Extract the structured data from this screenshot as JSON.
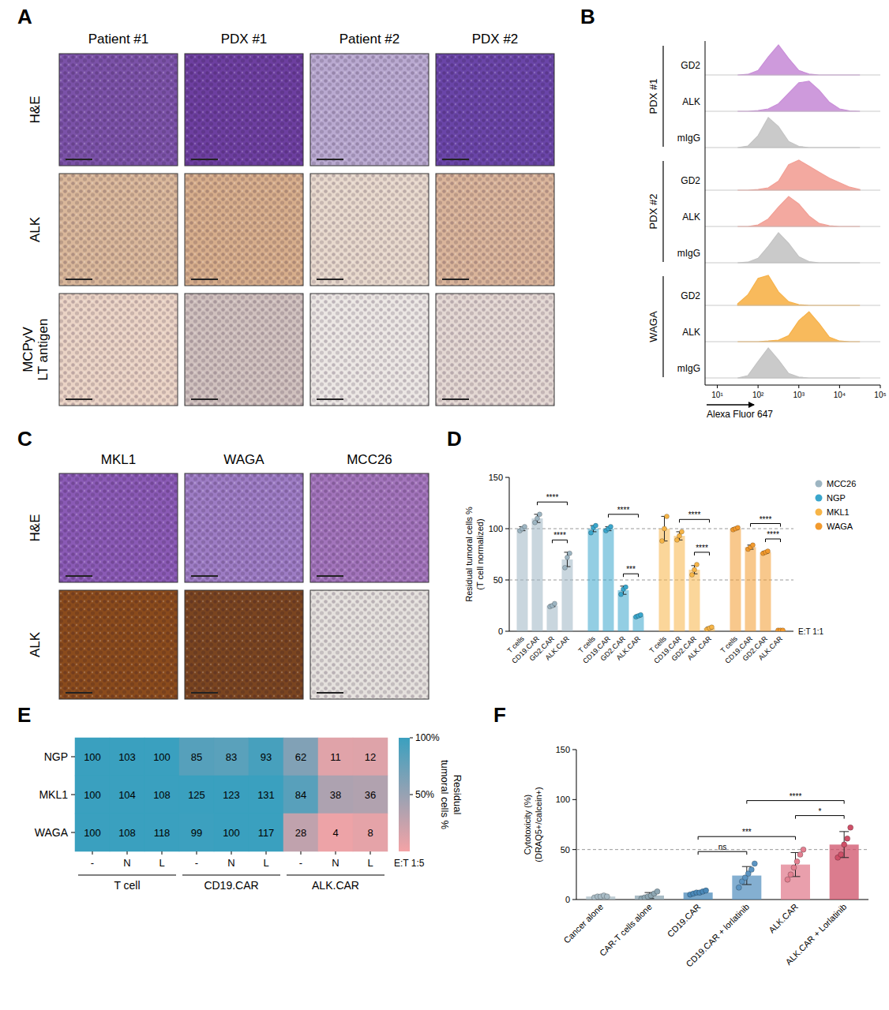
{
  "image_panels": [
    {
      "letter": "A",
      "columns": [
        "Patient #1",
        "PDX #1",
        "Patient #2",
        "PDX #2"
      ],
      "rows": [
        [
          "H&E"
        ],
        [
          "ALK"
        ],
        [
          "MCPyV",
          "LT antigen"
        ]
      ],
      "colors": [
        [
          "#7b52a8",
          "#6d3fa0",
          "#b9a9d0",
          "#6a45a8"
        ],
        [
          "#d9b79a",
          "#d6ad8b",
          "#e7d8cc",
          "#d9b49a"
        ],
        [
          "#ead3c5",
          "#cfc0bd",
          "#ebe6e3",
          "#e3d7d2"
        ]
      ]
    },
    {
      "letter": "C",
      "columns": [
        "MKL1",
        "WAGA",
        "MCC26"
      ],
      "rows": [
        [
          "H&E"
        ],
        [
          "ALK"
        ]
      ],
      "colors": [
        [
          "#8a5ab5",
          "#9d7cc4",
          "#a274bb"
        ],
        [
          "#8a4b1c",
          "#7a4520",
          "#e4e0dc"
        ]
      ]
    }
  ],
  "chart_data": [
    {
      "letter": "B",
      "type": "area",
      "log": "x",
      "tick_labels": "x",
      "x": [
        31.62,
        56.23,
        100,
        177.8,
        316.2,
        562.3,
        1000,
        1778,
        3162,
        5623,
        10000,
        17783,
        31623
      ],
      "xlim": [
        5,
        100000
      ],
      "xticks": [
        {
          "value": 10,
          "label": "10¹"
        },
        {
          "value": 100,
          "label": "10²"
        },
        {
          "value": 1000,
          "label": "10³"
        },
        {
          "value": 10000,
          "label": "10⁴"
        },
        {
          "value": 100000,
          "label": "10⁵"
        }
      ],
      "x_label": "Alexa Fluor 647",
      "groups": [
        {
          "name": "PDX #1",
          "series": [
            {
              "name": "GD2",
              "color": "#c98fd8",
              "values": [
                0,
                2,
                15,
                60,
                100,
                55,
                15,
                3,
                0,
                0,
                0,
                0,
                0
              ]
            },
            {
              "name": "ALK",
              "color": "#c98fd8",
              "values": [
                0,
                0,
                2,
                8,
                25,
                60,
                95,
                100,
                70,
                30,
                8,
                1,
                0
              ]
            },
            {
              "name": "mIgG",
              "color": "#c4c4c4",
              "values": [
                0,
                5,
                40,
                100,
                70,
                20,
                4,
                0,
                0,
                0,
                0,
                0,
                0
              ]
            }
          ]
        },
        {
          "name": "PDX #2",
          "series": [
            {
              "name": "GD2",
              "color": "#f2a096",
              "values": [
                0,
                0,
                2,
                8,
                30,
                85,
                100,
                80,
                60,
                40,
                25,
                10,
                2
              ]
            },
            {
              "name": "ALK",
              "color": "#f2a096",
              "values": [
                0,
                0,
                5,
                25,
                65,
                100,
                75,
                35,
                10,
                2,
                0,
                0,
                0
              ]
            },
            {
              "name": "mIgG",
              "color": "#c4c4c4",
              "values": [
                0,
                2,
                15,
                55,
                100,
                65,
                20,
                4,
                0,
                0,
                0,
                0,
                0
              ]
            }
          ]
        },
        {
          "name": "WAGA",
          "series": [
            {
              "name": "GD2",
              "color": "#f7b24a",
              "values": [
                5,
                35,
                90,
                100,
                45,
                12,
                2,
                0,
                0,
                0,
                0,
                0,
                0
              ]
            },
            {
              "name": "ALK",
              "color": "#f7b24a",
              "values": [
                0,
                0,
                0,
                2,
                5,
                20,
                70,
                100,
                60,
                15,
                2,
                0,
                0
              ]
            },
            {
              "name": "mIgG",
              "color": "#c4c4c4",
              "values": [
                0,
                8,
                55,
                100,
                60,
                15,
                3,
                0,
                0,
                0,
                0,
                0,
                0
              ]
            }
          ]
        }
      ]
    },
    {
      "letter": "D",
      "type": "bar",
      "legend": "right",
      "categories": [
        "T cells",
        "CD19.CAR",
        "GD2.CAR",
        "ALK.CAR"
      ],
      "y_label": [
        "Residual tumoral cells %",
        "(T cell normalized)"
      ],
      "ylim": [
        0,
        150
      ],
      "yticks": [
        0,
        50,
        100,
        150
      ],
      "reference_lines": [
        50,
        100
      ],
      "annotation": "E:T 1:1",
      "series": [
        {
          "name": "MCC26",
          "color": "#9db5c2",
          "values": [
            100,
            110,
            25,
            70
          ],
          "errors": [
            2,
            4,
            1,
            7
          ],
          "points": [
            [
              98,
              100,
              102
            ],
            [
              106,
              110,
              114
            ],
            [
              24,
              25,
              27
            ],
            [
              62,
              72,
              76
            ]
          ],
          "brackets": [
            {
              "from": 2,
              "to": 3,
              "label": "****"
            },
            {
              "from": 1,
              "to": 3,
              "label": "****"
            }
          ]
        },
        {
          "name": "NGP",
          "color": "#3aa6cc",
          "values": [
            100,
            100,
            40,
            15
          ],
          "errors": [
            3,
            2,
            4,
            1
          ],
          "points": [
            [
              96,
              101,
              103
            ],
            [
              98,
              100,
              102
            ],
            [
              36,
              41,
              43
            ],
            [
              14,
              15,
              16
            ]
          ],
          "brackets": [
            {
              "from": 2,
              "to": 3,
              "label": "***"
            },
            {
              "from": 1,
              "to": 3,
              "label": "****"
            }
          ]
        },
        {
          "name": "MKL1",
          "color": "#f7b547",
          "values": [
            100,
            93,
            60,
            3
          ],
          "errors": [
            12,
            4,
            4,
            1
          ],
          "points": [
            [
              88,
              100,
              112
            ],
            [
              89,
              93,
              97
            ],
            [
              55,
              60,
              65
            ],
            [
              2,
              3,
              4
            ]
          ],
          "brackets": [
            {
              "from": 2,
              "to": 3,
              "label": "****"
            },
            {
              "from": 1,
              "to": 3,
              "label": "****"
            }
          ]
        },
        {
          "name": "WAGA",
          "color": "#f29a2e",
          "values": [
            100,
            82,
            77,
            1
          ],
          "errors": [
            1,
            2,
            1,
            1
          ],
          "points": [
            [
              99,
              100,
              101
            ],
            [
              80,
              82,
              84
            ],
            [
              76,
              77,
              78
            ],
            [
              1,
              1,
              1
            ]
          ],
          "brackets": [
            {
              "from": 2,
              "to": 3,
              "label": "****"
            },
            {
              "from": 1,
              "to": 3,
              "label": "****"
            }
          ]
        }
      ]
    },
    {
      "letter": "E",
      "type": "heatmap",
      "data_labels": true,
      "rows": [
        "NGP",
        "MKL1",
        "WAGA"
      ],
      "groups": [
        "T cell",
        "CD19.CAR",
        "ALK.CAR"
      ],
      "columns": [
        "-",
        "N",
        "L",
        "-",
        "N",
        "L",
        "-",
        "N",
        "L"
      ],
      "cells": [
        [
          100,
          103,
          100,
          85,
          83,
          93,
          62,
          11,
          12
        ],
        [
          100,
          104,
          108,
          125,
          123,
          131,
          84,
          38,
          36
        ],
        [
          100,
          108,
          118,
          99,
          100,
          117,
          28,
          4,
          8
        ]
      ],
      "colors": [
        "#f4a3a6",
        "#3aa0bf"
      ],
      "colorbar_range": [
        0,
        100
      ],
      "colorbar_ticks": [
        {
          "value": 100,
          "label": "100%"
        },
        {
          "value": 50,
          "label": "50%"
        }
      ],
      "colorbar_label": [
        "Residual",
        "tumoral cells %"
      ],
      "annotation": "E:T 1:5"
    },
    {
      "letter": "F",
      "type": "bar",
      "categories": [
        "Cancer alone",
        "CAR-T cells alone",
        "CD19.CAR",
        "CD19.CAR + lorlatinib",
        "ALK.CAR",
        "ALK.CAR + Lorlatinib"
      ],
      "values": [
        3,
        4,
        7,
        24,
        35,
        55
      ],
      "errors": [
        1,
        3,
        1,
        9,
        12,
        13
      ],
      "points": [
        [
          2,
          3,
          3,
          4,
          3
        ],
        [
          1,
          2,
          3,
          4,
          6,
          8
        ],
        [
          5,
          6,
          7,
          7,
          8,
          9
        ],
        [
          12,
          18,
          22,
          26,
          30,
          36
        ],
        [
          20,
          25,
          32,
          38,
          45,
          50
        ],
        [
          42,
          45,
          55,
          61,
          72
        ]
      ],
      "colors": [
        "#a9bcc6",
        "#8ea7b3",
        "#4a88b8",
        "#5b94c2",
        "#e27f90",
        "#cf5068"
      ],
      "y_label": [
        "Cytotoxicity (%)",
        "(DRAQ5+/calcein+)"
      ],
      "ylim": [
        0,
        150
      ],
      "yticks": [
        0,
        50,
        100,
        150
      ],
      "reference_lines": [
        50
      ],
      "brackets": [
        {
          "from": 2,
          "to": 3,
          "label": "ns"
        },
        {
          "from": 2,
          "to": 4,
          "label": "***"
        },
        {
          "from": 4,
          "to": 5,
          "label": "*"
        },
        {
          "from": 3,
          "to": 5,
          "label": "****"
        }
      ]
    }
  ]
}
